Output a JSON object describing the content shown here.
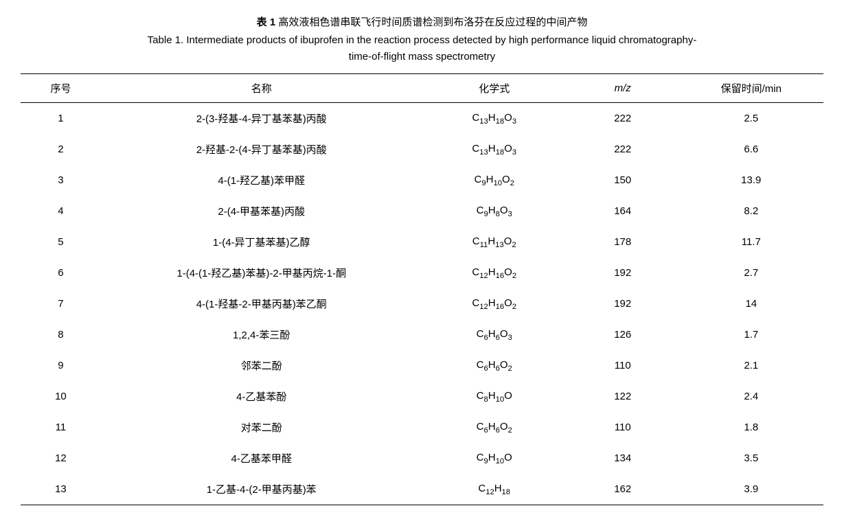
{
  "caption": {
    "line1_bold_label": "表 1",
    "line1_text": "  高效液相色谱串联飞行时间质谱检测到布洛芬在反应过程的中间产物",
    "line2_bold_label": "Table 1.",
    "line2_text": "  Intermediate products of ibuprofen in the reaction process detected by high performance liquid chromatography-",
    "line3_text": "time-of-flight mass spectrometry"
  },
  "table": {
    "headers": {
      "id": "序号",
      "name": "名称",
      "formula": "化学式",
      "mz": "m/z",
      "rt": "保留时间/min"
    },
    "rows": [
      {
        "id": "1",
        "name": "2-(3-羟基-4-异丁基苯基)丙酸",
        "formula": "C<sub>13</sub>H<sub>18</sub>O<sub>3</sub>",
        "mz": "222",
        "rt": "2.5"
      },
      {
        "id": "2",
        "name": "2-羟基-2-(4-异丁基苯基)丙酸",
        "formula": "C<sub>13</sub>H<sub>18</sub>O<sub>3</sub>",
        "mz": "222",
        "rt": "6.6"
      },
      {
        "id": "3",
        "name": "4-(1-羟乙基)苯甲醛",
        "formula": "C<sub>9</sub>H<sub>10</sub>O<sub>2</sub>",
        "mz": "150",
        "rt": "13.9"
      },
      {
        "id": "4",
        "name": "2-(4-甲基苯基)丙酸",
        "formula": "C<sub>9</sub>H<sub>8</sub>O<sub>3</sub>",
        "mz": "164",
        "rt": "8.2"
      },
      {
        "id": "5",
        "name": "1-(4-异丁基苯基)乙醇",
        "formula": "C<sub>11</sub>H<sub>13</sub>O<sub>2</sub>",
        "mz": "178",
        "rt": "11.7"
      },
      {
        "id": "6",
        "name": "1-(4-(1-羟乙基)苯基)-2-甲基丙烷-1-酮",
        "formula": "C<sub>12</sub>H<sub>16</sub>O<sub>2</sub>",
        "mz": "192",
        "rt": "2.7"
      },
      {
        "id": "7",
        "name": "4-(1-羟基-2-甲基丙基)苯乙酮",
        "formula": "C<sub>12</sub>H<sub>16</sub>O<sub>2</sub>",
        "mz": "192",
        "rt": "14"
      },
      {
        "id": "8",
        "name": "1,2,4-苯三酚",
        "formula": "C<sub>6</sub>H<sub>6</sub>O<sub>3</sub>",
        "mz": "126",
        "rt": "1.7"
      },
      {
        "id": "9",
        "name": "邻苯二酚",
        "formula": "C<sub>6</sub>H<sub>6</sub>O<sub>2</sub>",
        "mz": "110",
        "rt": "2.1"
      },
      {
        "id": "10",
        "name": "4-乙基苯酚",
        "formula": "C<sub>8</sub>H<sub>10</sub>O",
        "mz": "122",
        "rt": "2.4"
      },
      {
        "id": "11",
        "name": "对苯二酚",
        "formula": "C<sub>6</sub>H<sub>6</sub>O<sub>2</sub>",
        "mz": "110",
        "rt": "1.8"
      },
      {
        "id": "12",
        "name": "4-乙基苯甲醛",
        "formula": "C<sub>9</sub>H<sub>10</sub>O",
        "mz": "134",
        "rt": "3.5"
      },
      {
        "id": "13",
        "name": "1-乙基-4-(2-甲基丙基)苯",
        "formula": "C<sub>12</sub>H<sub>18</sub>",
        "mz": "162",
        "rt": "3.9"
      }
    ]
  },
  "style": {
    "background_color": "#ffffff",
    "text_color": "#000000",
    "border_color": "#000000",
    "font_size_body": 15,
    "font_size_caption": 15
  }
}
